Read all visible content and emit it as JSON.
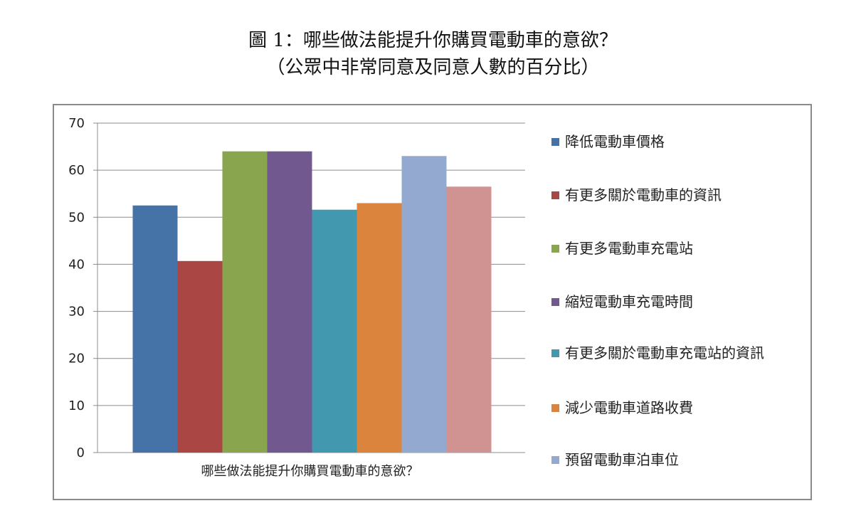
{
  "header": {
    "title_line1": "圖 1：哪些做法能提升你購買電動車的意欲？",
    "title_line2": "（公眾中非常同意及同意人數的百分比）"
  },
  "chart_data": {
    "type": "bar",
    "categories": [
      "哪些做法能提升你購買電動車的意欲？"
    ],
    "ylim": [
      0,
      70
    ],
    "yticks": [
      0,
      10,
      20,
      30,
      40,
      50,
      60,
      70
    ],
    "grid": true,
    "legend_position": "right",
    "series": [
      {
        "name": "降低電動車價格",
        "values": [
          52.5
        ],
        "color": "#4572A7"
      },
      {
        "name": "有更多關於電動車的資訊",
        "values": [
          40.7
        ],
        "color": "#AA4643"
      },
      {
        "name": "有更多電動車充電站",
        "values": [
          64
        ],
        "color": "#89A54E"
      },
      {
        "name": "縮短電動車充電時間",
        "values": [
          64
        ],
        "color": "#71588F"
      },
      {
        "name": "有更多關於電動車充電站的資訊",
        "values": [
          51.6
        ],
        "color": "#4198AF"
      },
      {
        "name": "減少電動車道路收費",
        "values": [
          53
        ],
        "color": "#DB843D"
      },
      {
        "name": "預留電動車泊車位",
        "values": [
          63
        ],
        "color": "#93A9CF"
      },
      {
        "name": "",
        "values": [
          56.5
        ],
        "color": "#D19392"
      }
    ]
  }
}
